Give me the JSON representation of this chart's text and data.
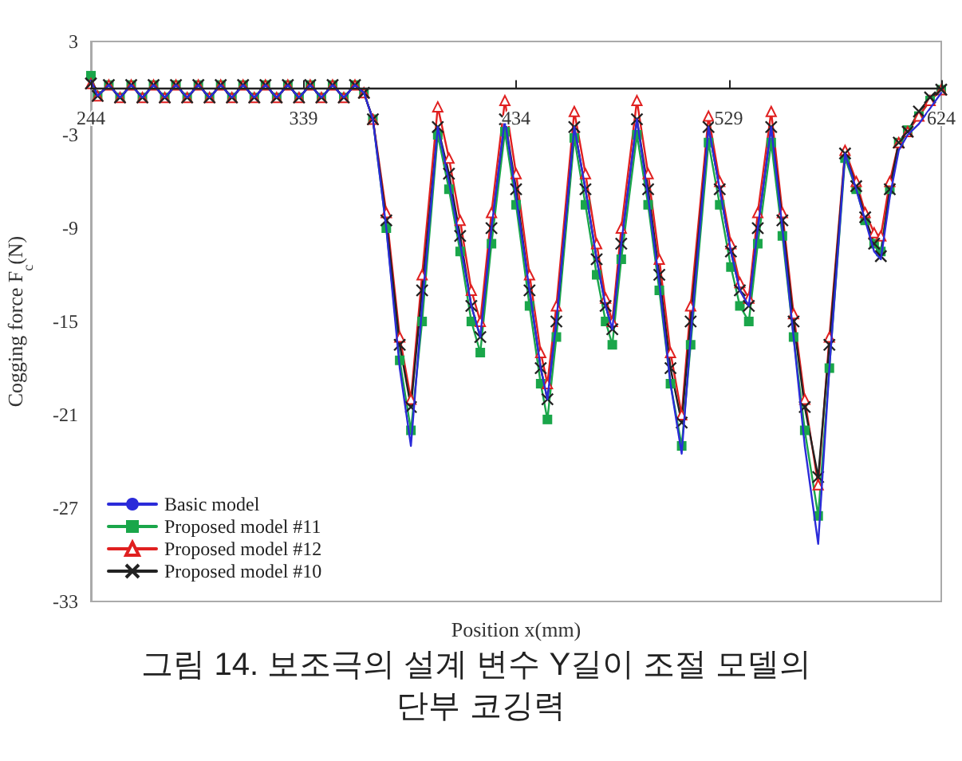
{
  "chart_data": {
    "type": "line",
    "xlabel": "Position x(mm)",
    "ylabel": "Cogging force F$_{c}$(N)",
    "annotations": [
      "그림 14. 보조극의 설계 변수 Y길이 조절 모델의 단부 코깅력"
    ],
    "xlim": [
      244,
      624
    ],
    "xticks": [
      244,
      339,
      434,
      529,
      624
    ],
    "ylim": [
      -33,
      3
    ],
    "yticks": [
      -33,
      -27,
      -21,
      -15,
      -9,
      -3,
      3
    ],
    "legend": "bottom left",
    "x": [
      244,
      247,
      252,
      257,
      262,
      267,
      272,
      277,
      282,
      287,
      292,
      297,
      302,
      307,
      312,
      317,
      322,
      327,
      332,
      337,
      342,
      347,
      352,
      357,
      362,
      366,
      370,
      376,
      382,
      387,
      392,
      399,
      404,
      409,
      414,
      418,
      423,
      429,
      434,
      440,
      445,
      448,
      452,
      460,
      465,
      470,
      474,
      477,
      481,
      488,
      493,
      498,
      503,
      508,
      512,
      520,
      525,
      530,
      534,
      538,
      542,
      548,
      553,
      558,
      563,
      569,
      574,
      581,
      586,
      590,
      594,
      597,
      601,
      605,
      609,
      614,
      619,
      624
    ],
    "series": [
      {
        "name": "Basic model",
        "color": "#2b2bd9",
        "marker": "none",
        "values": [
          0.5,
          -0.5,
          0.2,
          -0.6,
          0.2,
          -0.6,
          0.2,
          -0.6,
          0.2,
          -0.6,
          0.2,
          -0.6,
          0.2,
          -0.6,
          0.2,
          -0.6,
          0.2,
          -0.6,
          0.2,
          -0.6,
          0.2,
          -0.6,
          0.2,
          -0.6,
          0.2,
          -0.3,
          -2,
          -9,
          -18,
          -23,
          -14,
          -2.5,
          -6,
          -10,
          -14,
          -16,
          -9,
          -2,
          -7,
          -13,
          -18,
          -20,
          -15,
          -2.5,
          -6.5,
          -11,
          -14,
          -15.5,
          -10,
          -2,
          -7,
          -12.5,
          -19,
          -23.5,
          -16,
          -2.5,
          -6.5,
          -10.5,
          -13,
          -14,
          -9,
          -2.5,
          -9,
          -16,
          -23,
          -29.3,
          -18,
          -4.2,
          -6.5,
          -8.5,
          -10.5,
          -11,
          -7,
          -4,
          -3,
          -2.3,
          -1.3,
          -0.3
        ]
      },
      {
        "name": "Proposed model #11",
        "color": "#1aa64a",
        "marker": "square",
        "values": [
          0.8,
          -0.5,
          0.2,
          -0.6,
          0.2,
          -0.6,
          0.2,
          -0.6,
          0.2,
          -0.6,
          0.2,
          -0.6,
          0.2,
          -0.6,
          0.2,
          -0.6,
          0.2,
          -0.6,
          0.2,
          -0.6,
          0.2,
          -0.6,
          0.2,
          -0.6,
          0.2,
          -0.3,
          -2,
          -9,
          -17.5,
          -22,
          -15,
          -3,
          -6.5,
          -10.5,
          -15,
          -17,
          -10,
          -2.8,
          -7.5,
          -14,
          -19,
          -21.3,
          -16,
          -3.2,
          -7.5,
          -12,
          -15,
          -16.5,
          -11,
          -3,
          -7.5,
          -13,
          -19,
          -23,
          -16.5,
          -3.5,
          -7.5,
          -11.5,
          -14,
          -15,
          -10,
          -3.5,
          -9.5,
          -16,
          -22,
          -27.5,
          -18,
          -4.5,
          -6.5,
          -8.5,
          -10,
          -10.5,
          -6.5,
          -3.5,
          -2.7,
          -1.8,
          -0.8,
          -0.1
        ]
      },
      {
        "name": "Proposed model #12",
        "color": "#e02020",
        "marker": "triangle",
        "values": [
          0.3,
          -0.5,
          0.2,
          -0.6,
          0.2,
          -0.6,
          0.2,
          -0.6,
          0.2,
          -0.6,
          0.2,
          -0.6,
          0.2,
          -0.6,
          0.2,
          -0.6,
          0.2,
          -0.6,
          0.2,
          -0.6,
          0.2,
          -0.6,
          0.2,
          -0.6,
          0.2,
          -0.3,
          -2,
          -8,
          -16,
          -20,
          -12,
          -1.2,
          -4.5,
          -8.5,
          -13,
          -15,
          -8,
          -0.8,
          -5.5,
          -12,
          -17,
          -19,
          -14,
          -1.5,
          -5.5,
          -10,
          -13.5,
          -15,
          -9,
          -0.8,
          -5.5,
          -11,
          -17,
          -21,
          -14,
          -1.8,
          -6,
          -10,
          -12.5,
          -13.5,
          -8,
          -1.5,
          -8,
          -14.5,
          -20,
          -25.5,
          -16,
          -4,
          -6,
          -8,
          -9.3,
          -9.5,
          -6,
          -3.5,
          -2.8,
          -1.8,
          -0.8,
          -0.1
        ]
      },
      {
        "name": "Proposed model #10",
        "color": "#222222",
        "marker": "cross",
        "values": [
          0.3,
          -0.5,
          0.2,
          -0.6,
          0.2,
          -0.6,
          0.2,
          -0.6,
          0.2,
          -0.6,
          0.2,
          -0.6,
          0.2,
          -0.6,
          0.2,
          -0.6,
          0.2,
          -0.6,
          0.2,
          -0.6,
          0.2,
          -0.6,
          0.2,
          -0.6,
          0.2,
          -0.3,
          -2,
          -8.5,
          -16.5,
          -20.5,
          -13,
          -2.5,
          -5.5,
          -9.5,
          -14,
          -16,
          -9,
          -2,
          -6.5,
          -13,
          -18,
          -20,
          -15,
          -2.5,
          -6.5,
          -11,
          -14,
          -15.5,
          -10,
          -2,
          -6.5,
          -12,
          -18,
          -21.5,
          -15,
          -2.5,
          -6.5,
          -10.5,
          -13,
          -14,
          -9,
          -2.5,
          -8.5,
          -15,
          -20.5,
          -25,
          -16.5,
          -4.2,
          -6.3,
          -8.3,
          -10,
          -10.8,
          -6.5,
          -3.5,
          -2.8,
          -1.5,
          -0.6,
          -0.1
        ]
      }
    ]
  }
}
